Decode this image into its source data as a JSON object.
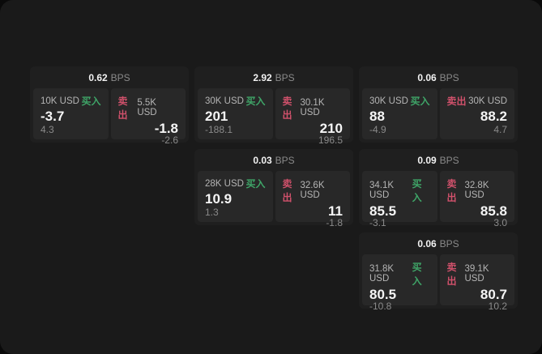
{
  "colors": {
    "buy": "#3fa568",
    "sell": "#d0516b",
    "panel_bg": "#1a1a1a",
    "card_bg": "#1f1f1f",
    "tile_bg": "#282828"
  },
  "layout_cells": [
    {
      "row": 0,
      "col": 0
    },
    {
      "row": 0,
      "col": 1
    },
    {
      "row": 0,
      "col": 2
    },
    {
      "row": 1,
      "col": 1
    },
    {
      "row": 1,
      "col": 2
    },
    {
      "row": 2,
      "col": 2
    }
  ],
  "cards": [
    {
      "bps_value": "0.62",
      "bps_unit": "BPS",
      "buy": {
        "size": "10K USD",
        "side": "买入",
        "value": "-3.7",
        "sub": "4.3"
      },
      "sell": {
        "side": "卖出",
        "size": "5.5K USD",
        "value": "-1.8",
        "sub": "-2.6"
      }
    },
    {
      "bps_value": "2.92",
      "bps_unit": "BPS",
      "buy": {
        "size": "30K USD",
        "side": "买入",
        "value": "201",
        "sub": "-188.1"
      },
      "sell": {
        "side": "卖出",
        "size": "30.1K USD",
        "value": "210",
        "sub": "196.5"
      }
    },
    {
      "bps_value": "0.06",
      "bps_unit": "BPS",
      "buy": {
        "size": "30K USD",
        "side": "买入",
        "value": "88",
        "sub": "-4.9"
      },
      "sell": {
        "side": "卖出",
        "size": "30K USD",
        "value": "88.2",
        "sub": "4.7"
      }
    },
    {
      "bps_value": "0.03",
      "bps_unit": "BPS",
      "buy": {
        "size": "28K USD",
        "side": "买入",
        "value": "10.9",
        "sub": "1.3"
      },
      "sell": {
        "side": "卖出",
        "size": "32.6K USD",
        "value": "11",
        "sub": "-1.8"
      }
    },
    {
      "bps_value": "0.09",
      "bps_unit": "BPS",
      "buy": {
        "size": "34.1K USD",
        "side": "买入",
        "value": "85.5",
        "sub": "-3.1"
      },
      "sell": {
        "side": "卖出",
        "size": "32.8K USD",
        "value": "85.8",
        "sub": "3.0"
      }
    },
    {
      "bps_value": "0.06",
      "bps_unit": "BPS",
      "buy": {
        "size": "31.8K USD",
        "side": "买入",
        "value": "80.5",
        "sub": "-10.8"
      },
      "sell": {
        "side": "卖出",
        "size": "39.1K USD",
        "value": "80.7",
        "sub": "10.2"
      }
    }
  ]
}
